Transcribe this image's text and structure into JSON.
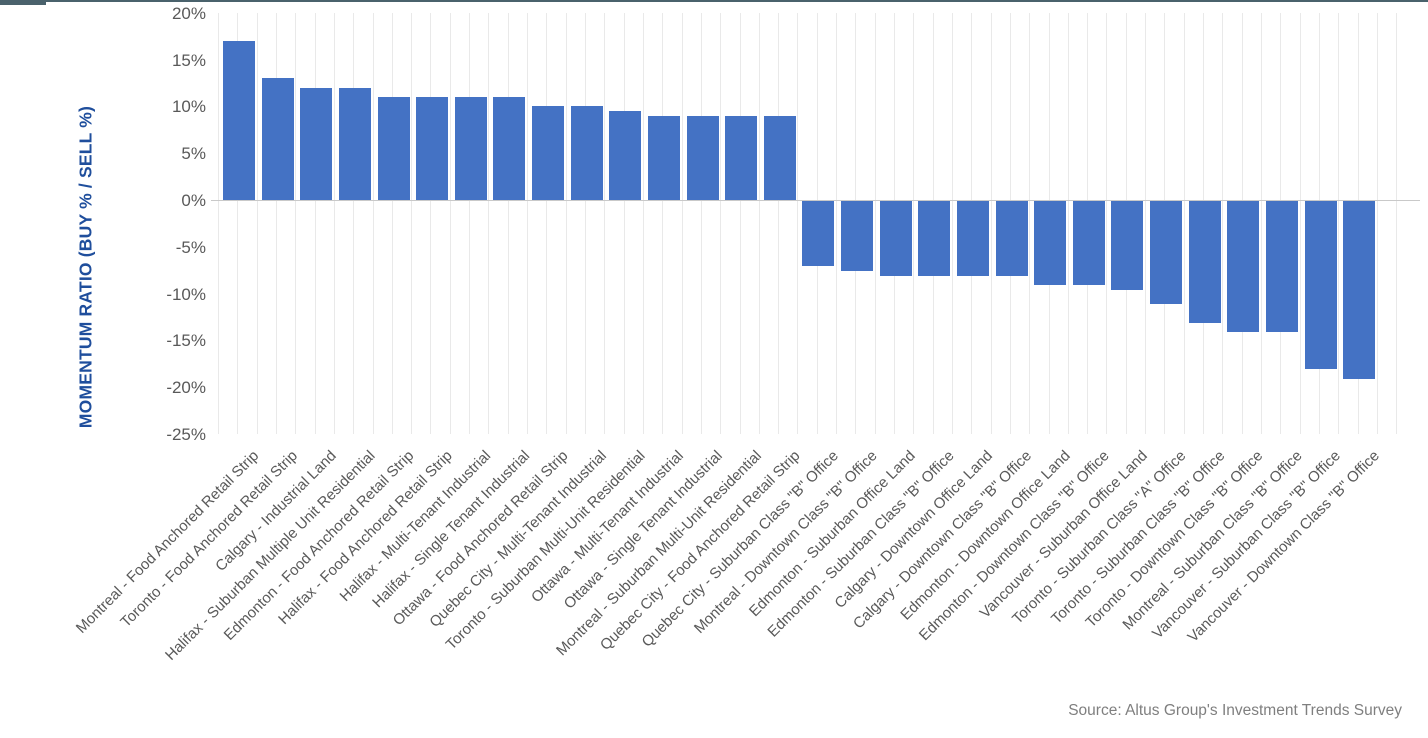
{
  "chart_data": {
    "type": "bar",
    "title": "",
    "xlabel": "",
    "ylabel": "MOMENTUM RATIO (BUY % / SELL %)",
    "ylim": [
      -25,
      20
    ],
    "ytick_values": [
      20,
      15,
      10,
      5,
      0,
      -5,
      -10,
      -15,
      -20,
      -25
    ],
    "ytick_labels": [
      "20%",
      "15%",
      "10%",
      "5%",
      "0%",
      "-5%",
      "-10%",
      "-15%",
      "-20%",
      "-25%"
    ],
    "grid": "vertical-minor-gridlines-only",
    "legend": "none",
    "bar_color": "#4472C4",
    "categories": [
      "Montreal - Food Anchored Retail Strip",
      "Toronto - Food Anchored Retail Strip",
      "Calgary - Industrial Land",
      "Halifax - Suburban Multiple Unit Residential",
      "Edmonton - Food Anchored Retail Strip",
      "Halifax - Food Anchored Retail Strip",
      "Halifax - Multi-Tenant Industrial",
      "Halifax - Single Tenant Industrial",
      "Ottawa - Food Anchored Retail Strip",
      "Quebec City - Multi-Tenant Industrial",
      "Toronto - Suburban Multi-Unit Residential",
      "Ottawa - Multi-Tenant Industrial",
      "Ottawa - Single Tenant Industrial",
      "Montreal - Suburban Multi-Unit Residential",
      "Quebec City - Food Anchored Retail Strip",
      "Quebec City - Suburban Class \"B\" Office",
      "Montreal - Downtown Class \"B\" Office",
      "Edmonton - Suburban Office Land",
      "Edmonton - Suburban Class \"B\" Office",
      "Calgary - Downtown Office Land",
      "Calgary - Downtown Class \"B\" Office",
      "Edmonton - Downtown Office Land",
      "Edmonton - Downtown Class \"B\" Office",
      "Vancouver - Suburban Office Land",
      "Toronto - Suburban Class \"A\" Office",
      "Toronto - Suburban Class \"B\" Office",
      "Toronto - Downtown Class \"B\" Office",
      "Montreal - Suburban Class \"B\" Office",
      "Vancouver - Suburban Class \"B\" Office",
      "Vancouver - Downtown Class \"B\" Office"
    ],
    "values": [
      17,
      13,
      12,
      12,
      11,
      11,
      11,
      11,
      10,
      10,
      9.5,
      9,
      9,
      9,
      9,
      -7,
      -7.5,
      -8,
      -8,
      -8,
      -8,
      -9,
      -9,
      -9.5,
      -11,
      -13,
      -14,
      -14,
      -18,
      -19
    ]
  },
  "source_note": "Source: Altus Group's Investment Trends Survey",
  "colors": {
    "bar": "#4472C4",
    "axis_title": "#1F4E9C",
    "tick_text": "#595959",
    "category_text": "#595959",
    "source_text": "#7F7F7F",
    "gridline": "#E9E9E9",
    "zero_line": "#C9C9C9",
    "top_line": "#4A626C"
  }
}
